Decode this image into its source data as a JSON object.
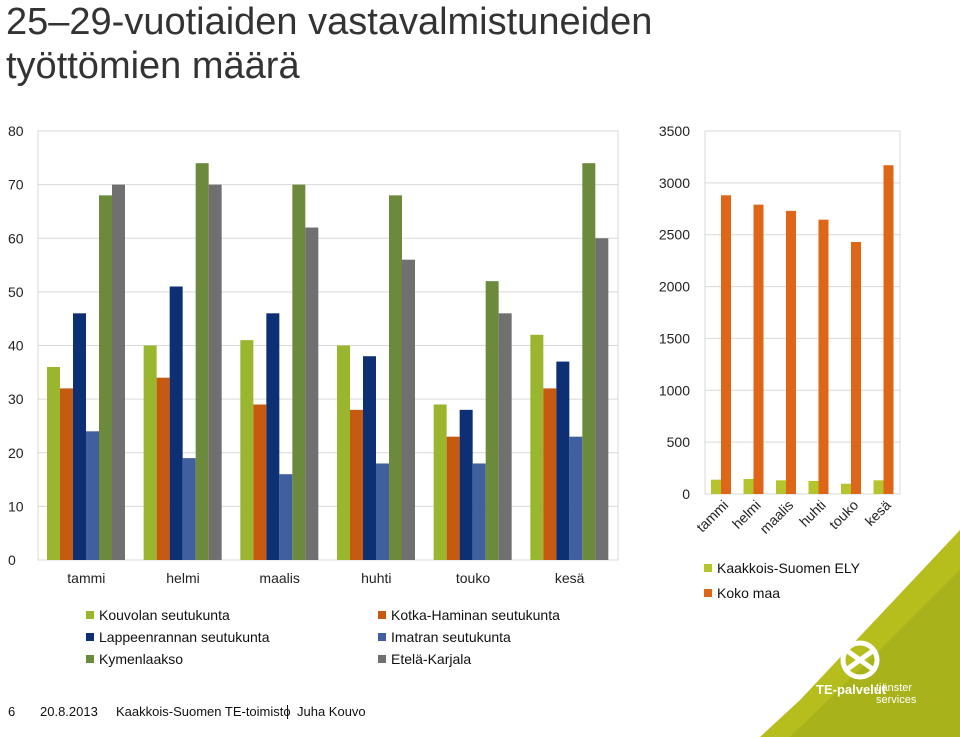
{
  "slide": {
    "title_line1": "25–29-vuotiaiden vastavalmistuneiden",
    "title_line2": "työttömien määrä"
  },
  "footer": {
    "page_number": "6",
    "date": "20.8.2013",
    "office": "Kaakkois-Suomen TE-toimisto",
    "author": "Juha Kouvo"
  },
  "logo": {
    "name": "TE-palvelut",
    "tagline_line1": "tjänster",
    "tagline_line2": "services"
  },
  "colors": {
    "kouvola": "#9ab52e",
    "kotka": "#c65a10",
    "lappeenranta": "#0d2f73",
    "imatra": "#3f5f9e",
    "kymenlaakso": "#6c8a3c",
    "etela_karjala": "#707070",
    "ely": "#b5c42d",
    "koko_maa": "#dd6618",
    "accent_green": "#b5be1d"
  },
  "chart_data": [
    {
      "type": "bar",
      "categories": [
        "tammi",
        "helmi",
        "maalis",
        "huhti",
        "touko",
        "kesä"
      ],
      "ylim": [
        0,
        80
      ],
      "yticks": [
        "0",
        "10",
        "20",
        "30",
        "40",
        "50",
        "60",
        "70",
        "80"
      ],
      "grid": true,
      "legend_position": "bottom",
      "series": [
        {
          "name": "Kouvolan seutukunta",
          "values": [
            36,
            40,
            41,
            40,
            29,
            42
          ]
        },
        {
          "name": "Kotka-Haminan seutukunta",
          "values": [
            32,
            34,
            29,
            28,
            23,
            32
          ]
        },
        {
          "name": "Lappeenrannan seutukunta",
          "values": [
            46,
            51,
            46,
            38,
            28,
            37
          ]
        },
        {
          "name": "Imatran seutukunta",
          "values": [
            24,
            19,
            16,
            18,
            18,
            23
          ]
        },
        {
          "name": "Kymenlaakso",
          "values": [
            68,
            74,
            70,
            68,
            52,
            74
          ]
        },
        {
          "name": "Etelä-Karjala",
          "values": [
            70,
            70,
            62,
            56,
            46,
            60
          ]
        }
      ]
    },
    {
      "type": "bar",
      "categories": [
        "tammi",
        "helmi",
        "maalis",
        "huhti",
        "touko",
        "kesä"
      ],
      "ylim": [
        0,
        3500
      ],
      "yticks": [
        "0",
        "500",
        "1000",
        "1500",
        "2000",
        "2500",
        "3000",
        "3500"
      ],
      "grid": true,
      "legend_position": "bottom",
      "series": [
        {
          "name": "Kaakkois-Suomen ELY",
          "values": [
            138,
            145,
            132,
            126,
            99,
            132
          ]
        },
        {
          "name": "Koko maa",
          "values": [
            2880,
            2790,
            2730,
            2645,
            2430,
            3170
          ]
        }
      ]
    }
  ]
}
